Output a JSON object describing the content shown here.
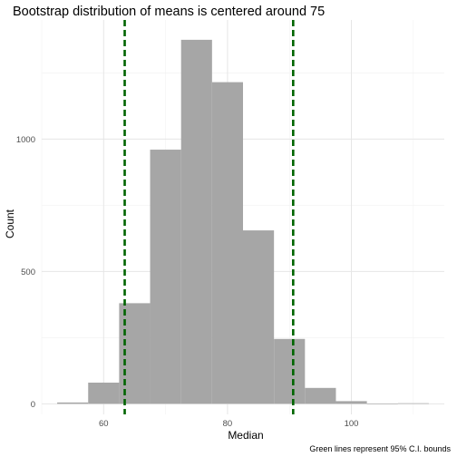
{
  "chart_data": {
    "type": "bar",
    "title": "Bootstrap distribution of means is centered around 75",
    "xlabel": "Median",
    "ylabel": "Count",
    "caption": "Green lines represent 95% C.I. bounds",
    "xlim": [
      50,
      115
    ],
    "ylim": [
      -40,
      1450
    ],
    "x_ticks": [
      60,
      80,
      100
    ],
    "y_ticks": [
      0,
      500,
      1000
    ],
    "bins": [
      {
        "x0": 52.5,
        "x1": 57.5,
        "count": 5
      },
      {
        "x0": 57.5,
        "x1": 62.5,
        "count": 80
      },
      {
        "x0": 62.5,
        "x1": 67.5,
        "count": 380
      },
      {
        "x0": 67.5,
        "x1": 72.5,
        "count": 960
      },
      {
        "x0": 72.5,
        "x1": 77.5,
        "count": 1375
      },
      {
        "x0": 77.5,
        "x1": 82.5,
        "count": 1215
      },
      {
        "x0": 82.5,
        "x1": 87.5,
        "count": 655
      },
      {
        "x0": 87.5,
        "x1": 92.5,
        "count": 245
      },
      {
        "x0": 92.5,
        "x1": 97.5,
        "count": 60
      },
      {
        "x0": 97.5,
        "x1": 102.5,
        "count": 10
      },
      {
        "x0": 102.5,
        "x1": 107.5,
        "count": 0
      },
      {
        "x0": 107.5,
        "x1": 112.5,
        "count": 2
      }
    ],
    "bar_color": "#a6a6a6",
    "ci_bounds": [
      63.4,
      90.6
    ],
    "ci_color": "#006400",
    "grid": true
  }
}
